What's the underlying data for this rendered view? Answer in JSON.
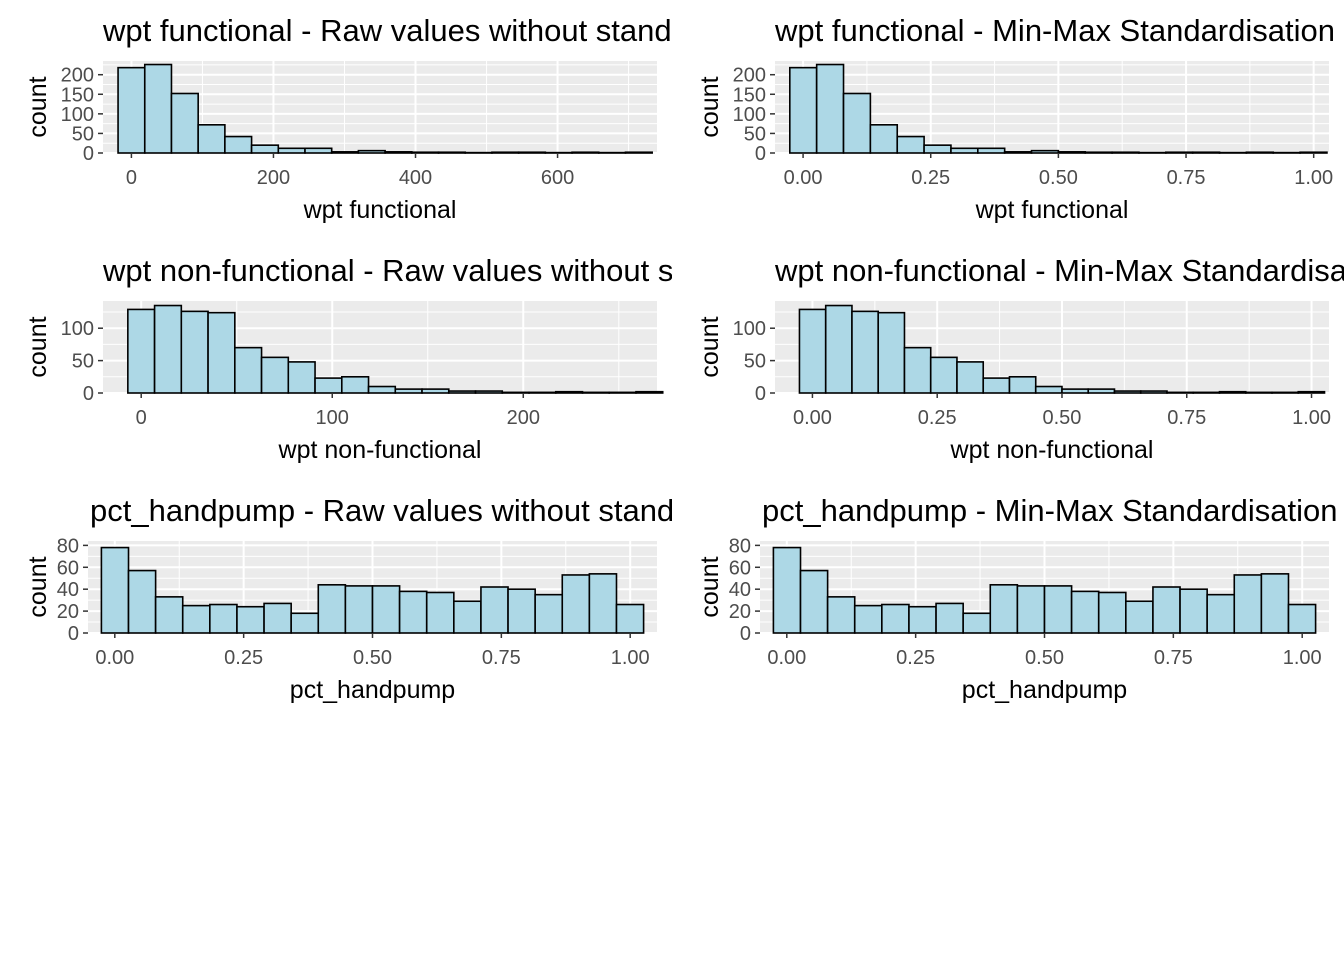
{
  "chart_data": [
    {
      "type": "bar",
      "title": "wpt functional - Raw values without standardisation",
      "xlabel": "wpt functional",
      "ylabel": "count",
      "xlim": [
        -40,
        740
      ],
      "ylim": [
        0,
        235
      ],
      "xticks": [
        0,
        200,
        400,
        600
      ],
      "xtick_labels": [
        "0",
        "200",
        "400",
        "600"
      ],
      "yticks": [
        0,
        50,
        100,
        150,
        200
      ],
      "ytick_labels": [
        "0",
        "50",
        "100",
        "150",
        "200"
      ],
      "bin_start": -18.8,
      "bin_width": 37.6,
      "values": [
        218,
        226,
        152,
        72,
        42,
        20,
        12,
        12,
        3,
        6,
        3,
        2,
        2,
        1,
        2,
        2,
        1,
        2,
        1,
        2
      ],
      "fill": "#ADD8E6",
      "grid": true
    },
    {
      "type": "bar",
      "title": "wpt functional - Min-Max Standardisation",
      "xlabel": "wpt functional",
      "ylabel": "count",
      "xlim": [
        -0.055,
        1.03
      ],
      "ylim": [
        0,
        235
      ],
      "xticks": [
        0,
        0.25,
        0.5,
        0.75,
        1.0
      ],
      "xtick_labels": [
        "0.00",
        "0.25",
        "0.50",
        "0.75",
        "1.00"
      ],
      "yticks": [
        0,
        50,
        100,
        150,
        200
      ],
      "ytick_labels": [
        "0",
        "50",
        "100",
        "150",
        "200"
      ],
      "bin_start": -0.026,
      "bin_width": 0.0526,
      "values": [
        218,
        226,
        152,
        72,
        42,
        20,
        12,
        12,
        3,
        6,
        3,
        2,
        2,
        1,
        2,
        2,
        1,
        2,
        1,
        2
      ],
      "fill": "#ADD8E6",
      "grid": true
    },
    {
      "type": "bar",
      "title": "wpt non-functional - Raw values without standardisation",
      "xlabel": "wpt non-functional",
      "ylabel": "count",
      "xlim": [
        -20,
        270
      ],
      "ylim": [
        0,
        142
      ],
      "xticks": [
        0,
        100,
        200
      ],
      "xtick_labels": [
        "0",
        "100",
        "200"
      ],
      "yticks": [
        0,
        50,
        100
      ],
      "ytick_labels": [
        "0",
        "50",
        "100"
      ],
      "bin_start": -7,
      "bin_width": 14,
      "values": [
        129,
        135,
        126,
        124,
        70,
        55,
        48,
        23,
        25,
        10,
        6,
        6,
        3,
        3,
        1,
        1,
        2,
        1,
        1,
        2
      ],
      "fill": "#ADD8E6",
      "grid": true
    },
    {
      "type": "bar",
      "title": "wpt non-functional - Min-Max Standardisation",
      "xlabel": "wpt non-functional",
      "ylabel": "count",
      "xlim": [
        -0.075,
        1.035
      ],
      "ylim": [
        0,
        142
      ],
      "xticks": [
        0,
        0.25,
        0.5,
        0.75,
        1.0
      ],
      "xtick_labels": [
        "0.00",
        "0.25",
        "0.50",
        "0.75",
        "1.00"
      ],
      "yticks": [
        0,
        50,
        100
      ],
      "ytick_labels": [
        "0",
        "50",
        "100"
      ],
      "bin_start": -0.026,
      "bin_width": 0.0526,
      "values": [
        129,
        135,
        126,
        124,
        70,
        55,
        48,
        23,
        25,
        10,
        6,
        6,
        3,
        3,
        1,
        1,
        2,
        1,
        1,
        2
      ],
      "fill": "#ADD8E6",
      "grid": true
    },
    {
      "type": "bar",
      "title": "pct_handpump - Raw values without standardisation",
      "xlabel": "pct_handpump",
      "ylabel": "count",
      "xlim": [
        -0.052,
        1.052
      ],
      "ylim": [
        0,
        84
      ],
      "xticks": [
        0,
        0.25,
        0.5,
        0.75,
        1.0
      ],
      "xtick_labels": [
        "0.00",
        "0.25",
        "0.50",
        "0.75",
        "1.00"
      ],
      "yticks": [
        0,
        20,
        40,
        60,
        80
      ],
      "ytick_labels": [
        "0",
        "20",
        "40",
        "60",
        "80"
      ],
      "bin_start": -0.026,
      "bin_width": 0.0526,
      "values": [
        78,
        57,
        33,
        25,
        26,
        24,
        27,
        18,
        44,
        43,
        43,
        38,
        37,
        29,
        42,
        40,
        35,
        53,
        54,
        26
      ],
      "fill": "#ADD8E6",
      "grid": true
    },
    {
      "type": "bar",
      "title": "pct_handpump - Min-Max Standardisation",
      "xlabel": "pct_handpump",
      "ylabel": "count",
      "xlim": [
        -0.052,
        1.052
      ],
      "ylim": [
        0,
        84
      ],
      "xticks": [
        0,
        0.25,
        0.5,
        0.75,
        1.0
      ],
      "xtick_labels": [
        "0.00",
        "0.25",
        "0.50",
        "0.75",
        "1.00"
      ],
      "yticks": [
        0,
        20,
        40,
        60,
        80
      ],
      "ytick_labels": [
        "0",
        "20",
        "40",
        "60",
        "80"
      ],
      "bin_start": -0.026,
      "bin_width": 0.0526,
      "values": [
        78,
        57,
        33,
        25,
        26,
        24,
        27,
        18,
        44,
        43,
        43,
        38,
        37,
        29,
        42,
        40,
        35,
        53,
        54,
        26
      ],
      "fill": "#ADD8E6",
      "grid": true
    }
  ]
}
